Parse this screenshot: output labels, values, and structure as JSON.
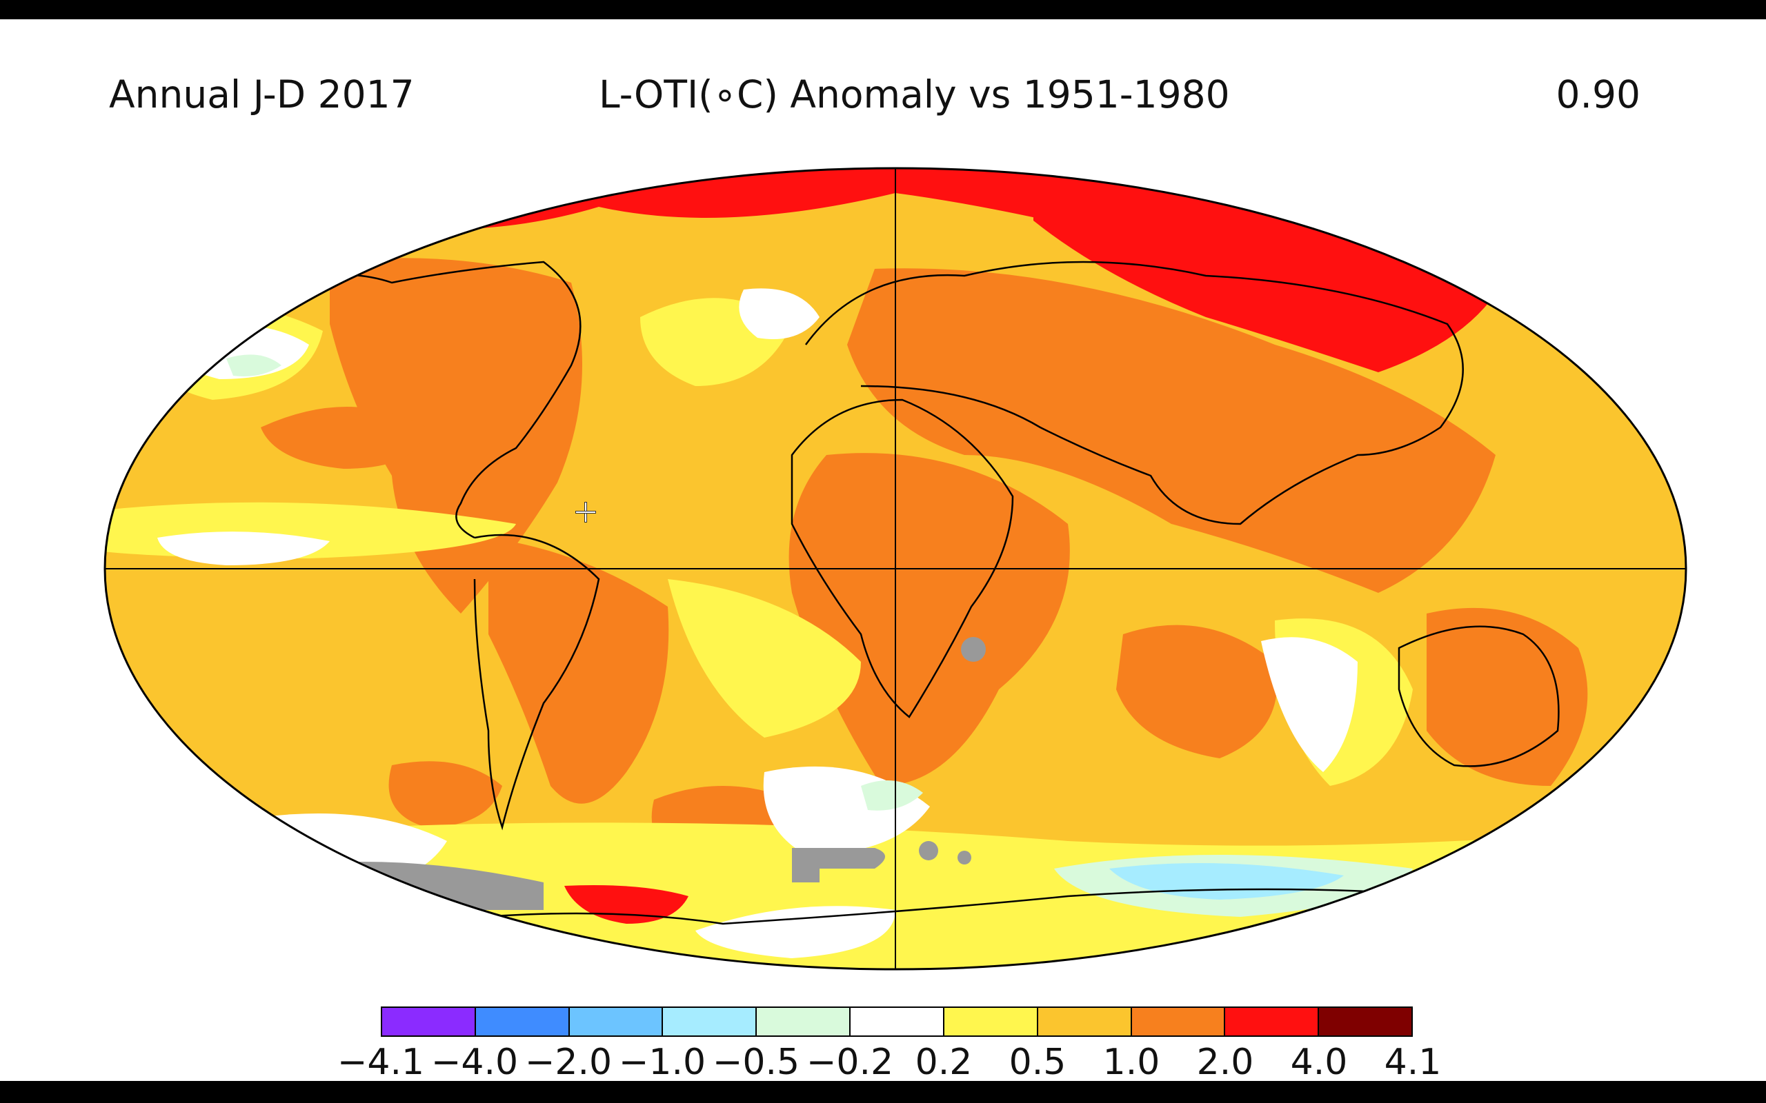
{
  "header": {
    "left": "Annual J-D 2017",
    "center": "L-OTI(∘C) Anomaly vs 1951-1980",
    "right": "0.90"
  },
  "colorbar": {
    "colors": [
      "#8b2bff",
      "#3f8cff",
      "#6cc4ff",
      "#a6ecff",
      "#d9fadc",
      "#ffffff",
      "#fff64e",
      "#fbc52e",
      "#f7801e",
      "#ff1010",
      "#7f0000"
    ],
    "ticks": [
      "−4.1",
      "−4.0",
      "−2.0",
      "−1.0",
      "−0.5",
      "−0.2",
      "0.2",
      "0.5",
      "1.0",
      "2.0",
      "4.0",
      "4.1"
    ]
  },
  "map": {
    "projection": "robinson",
    "gridlines": [
      "equator",
      "prime-meridian"
    ],
    "base_color": "#fbc52e",
    "missing_color": "#999999"
  }
}
